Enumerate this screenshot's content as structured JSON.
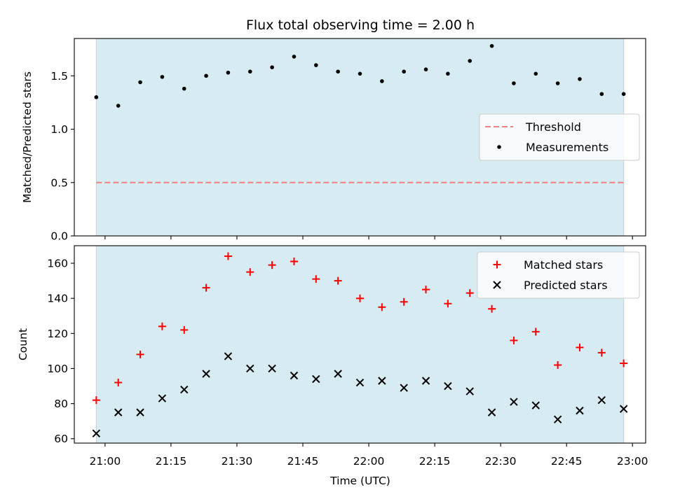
{
  "chart_data": {
    "type": "scatter",
    "title": "Flux total observing time = 2.00 h",
    "xlabel": "Time (UTC)",
    "x_ticks": [
      "21:00",
      "21:15",
      "21:30",
      "21:45",
      "22:00",
      "22:15",
      "22:30",
      "22:45",
      "23:00"
    ],
    "x_range": [
      "20:53",
      "23:03"
    ],
    "shaded_span": {
      "start": "20:58",
      "end": "22:58",
      "color": "#add8e6"
    },
    "x": [
      "20:58",
      "21:03",
      "21:08",
      "21:13",
      "21:18",
      "21:23",
      "21:28",
      "21:33",
      "21:38",
      "21:43",
      "21:48",
      "21:53",
      "21:58",
      "22:03",
      "22:08",
      "22:13",
      "22:18",
      "22:23",
      "22:28",
      "22:33",
      "22:38",
      "22:43",
      "22:48",
      "22:53",
      "22:58"
    ],
    "panels": [
      {
        "ylabel": "Matched/Predicted stars",
        "ylim": [
          0,
          1.85
        ],
        "y_ticks": [
          "0.0",
          "0.5",
          "1.0",
          "1.5"
        ],
        "legend_position": "center-right",
        "series": [
          {
            "name": "Threshold",
            "kind": "line",
            "color": "#f08080",
            "dash": true,
            "value": 0.5
          },
          {
            "name": "Measurements",
            "kind": "dot",
            "color": "#000000",
            "values": [
              1.3,
              1.22,
              1.44,
              1.49,
              1.38,
              1.5,
              1.53,
              1.54,
              1.58,
              1.68,
              1.6,
              1.54,
              1.52,
              1.45,
              1.54,
              1.56,
              1.52,
              1.64,
              1.78,
              1.43,
              1.52,
              1.43,
              1.47,
              1.33,
              1.33
            ]
          }
        ]
      },
      {
        "ylabel": "Count",
        "ylim": [
          57.5,
          170
        ],
        "y_ticks": [
          "60",
          "80",
          "100",
          "120",
          "140",
          "160"
        ],
        "legend_position": "top-right",
        "series": [
          {
            "name": "Matched stars",
            "kind": "plus",
            "color": "#ff0000",
            "values": [
              82,
              92,
              108,
              124,
              122,
              146,
              164,
              155,
              159,
              161,
              151,
              150,
              140,
              135,
              138,
              145,
              137,
              143,
              134,
              116,
              121,
              102,
              112,
              109,
              103
            ]
          },
          {
            "name": "Predicted stars",
            "kind": "x",
            "color": "#000000",
            "values": [
              63,
              75,
              75,
              83,
              88,
              97,
              107,
              100,
              100,
              96,
              94,
              97,
              92,
              93,
              89,
              93,
              90,
              87,
              75,
              81,
              79,
              71,
              76,
              82,
              77
            ]
          }
        ]
      }
    ]
  }
}
